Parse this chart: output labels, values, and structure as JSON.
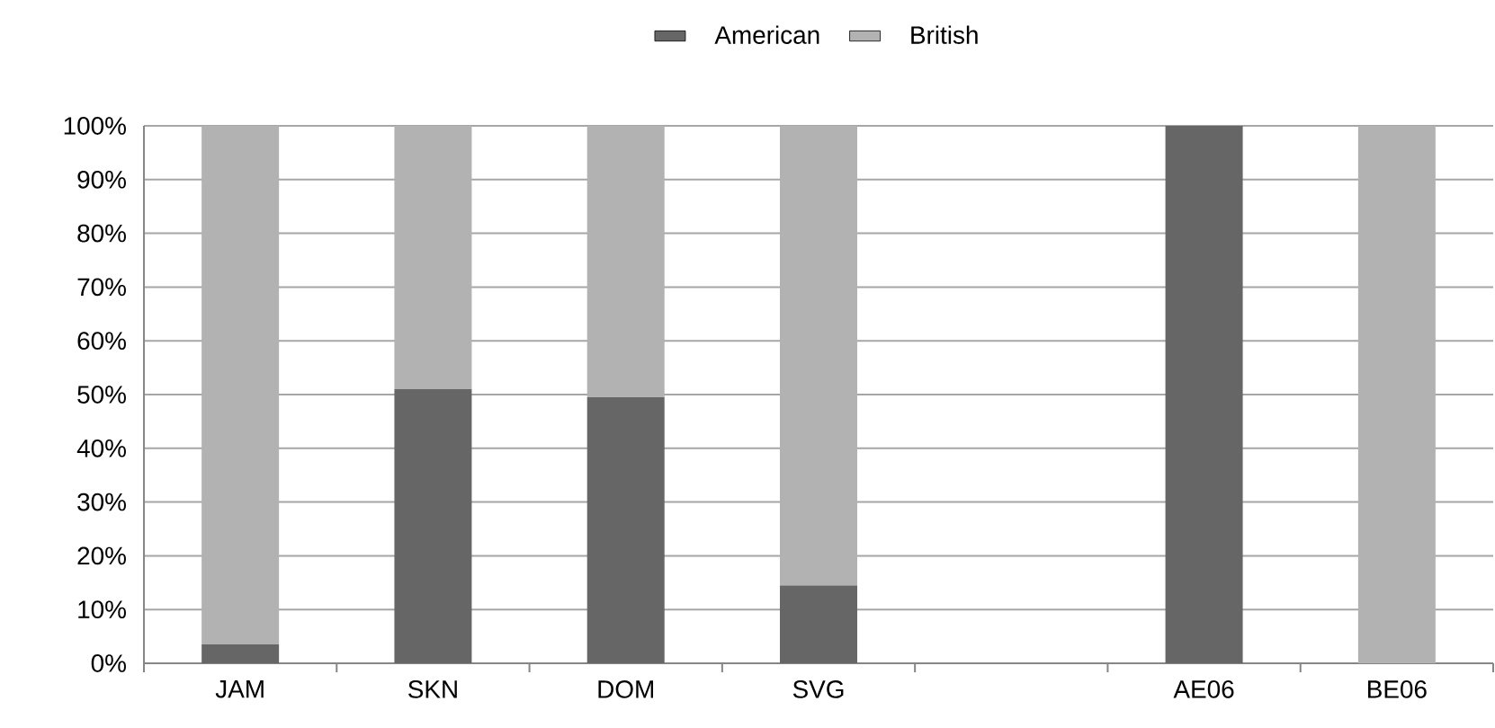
{
  "chart_data": {
    "type": "bar",
    "stacked": true,
    "categories": [
      "JAM",
      "SKN",
      "DOM",
      "SVG",
      null,
      "AE06",
      "BE06"
    ],
    "series": [
      {
        "name": "American",
        "color": "#666666",
        "values": [
          3.5,
          51,
          49.5,
          14.5,
          null,
          100,
          0
        ]
      },
      {
        "name": "British",
        "color": "#b2b2b2",
        "values": [
          96.5,
          49,
          50.5,
          85.5,
          null,
          0,
          100
        ]
      }
    ],
    "ylim": [
      0,
      100
    ],
    "yticks": [
      {
        "value": 0,
        "label": "0%"
      },
      {
        "value": 10,
        "label": "10%"
      },
      {
        "value": 20,
        "label": "20%"
      },
      {
        "value": 30,
        "label": "30%"
      },
      {
        "value": 40,
        "label": "40%"
      },
      {
        "value": 50,
        "label": "50%"
      },
      {
        "value": 60,
        "label": "60%"
      },
      {
        "value": 70,
        "label": "70%"
      },
      {
        "value": 80,
        "label": "80%"
      },
      {
        "value": 90,
        "label": "90%"
      },
      {
        "value": 100,
        "label": "100%"
      }
    ],
    "grid": "y",
    "legend": "top"
  }
}
